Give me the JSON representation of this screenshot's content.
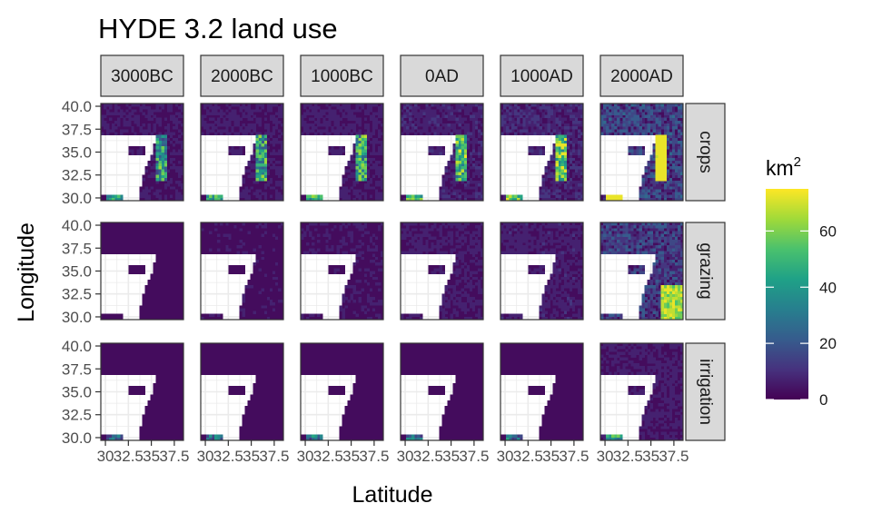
{
  "chart_data": {
    "type": "heatmap",
    "title": "HYDE 3.2 land use",
    "xlabel": "Latitude",
    "ylabel": "Longitude",
    "columns": [
      "3000BC",
      "2000BC",
      "1000BC",
      "0AD",
      "1000AD",
      "2000AD"
    ],
    "rows": [
      "crops",
      "grazing",
      "irrigation"
    ],
    "x_ticks": [
      "30",
      "32.5",
      "35",
      "37.5"
    ],
    "y_ticks": [
      "30.0",
      "32.5",
      "35.0",
      "37.5",
      "40.0"
    ],
    "xlim": [
      29.5,
      38.5
    ],
    "ylim": [
      29.7,
      40.3
    ],
    "legend": {
      "title": "km",
      "title_superscript": "2",
      "ticks": [
        "0",
        "20",
        "40",
        "60"
      ],
      "range": [
        0,
        75
      ],
      "colormap": "viridis"
    },
    "cell_intensity_estimates": {
      "crops": [
        0.12,
        0.14,
        0.16,
        0.2,
        0.24,
        0.5
      ],
      "grazing": [
        0.06,
        0.08,
        0.1,
        0.14,
        0.18,
        0.45
      ],
      "irrigation": [
        0.02,
        0.03,
        0.04,
        0.05,
        0.06,
        0.15
      ]
    },
    "grid": true,
    "legend_position": "right"
  },
  "colors": {
    "panel_background": "#ffffff",
    "grid_line": "#ebebeb",
    "strip_fill": "#d9d9d9",
    "panel_border": "#333333",
    "land_base": "#440154",
    "viridis": [
      "#440154",
      "#46327e",
      "#365c8d",
      "#277f8e",
      "#1fa187",
      "#4ac16d",
      "#a0da39",
      "#fde725"
    ]
  }
}
